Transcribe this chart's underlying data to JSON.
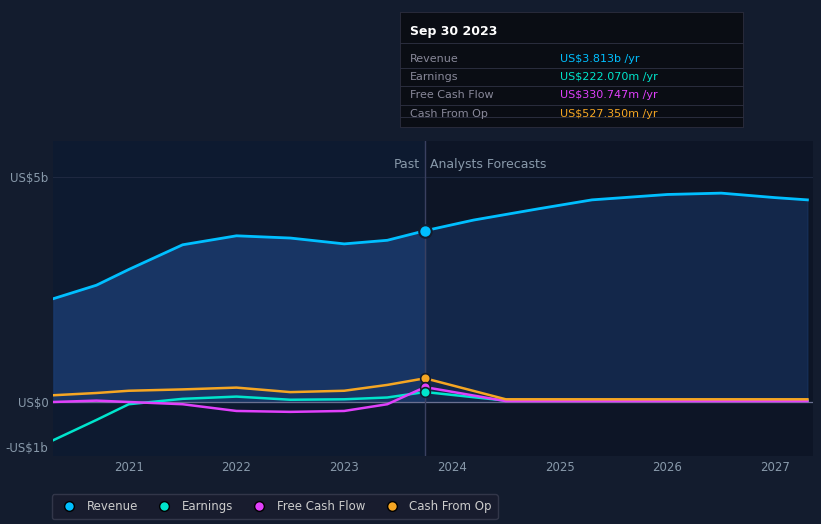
{
  "bg_color": "#131c2e",
  "plot_bg_color": "#0d1526",
  "plot_bg_past": "#0d1a30",
  "plot_bg_future": "#0d1526",
  "title_text": "Sep 30 2023",
  "tooltip_labels": [
    "Revenue",
    "Earnings",
    "Free Cash Flow",
    "Cash From Op"
  ],
  "tooltip_values": [
    "US$3.813b /yr",
    "US$222.070m /yr",
    "US$330.747m /yr",
    "US$527.350m /yr"
  ],
  "tooltip_colors": [
    "#00bfff",
    "#00e5cc",
    "#e040fb",
    "#f5a623"
  ],
  "past_label": "Past",
  "forecast_label": "Analysts Forecasts",
  "ylabel_top": "US$5b",
  "ylabel_zero": "US$0",
  "ylabel_bottom": "-US$1b",
  "divider_x": 2023.75,
  "x_ticks": [
    2021,
    2022,
    2023,
    2024,
    2025,
    2026,
    2027
  ],
  "legend_labels": [
    "Revenue",
    "Earnings",
    "Free Cash Flow",
    "Cash From Op"
  ],
  "legend_colors": [
    "#00bfff",
    "#00e5cc",
    "#e040fb",
    "#f5a623"
  ],
  "revenue_past_x": [
    2020.3,
    2020.7,
    2021.0,
    2021.5,
    2022.0,
    2022.5,
    2023.0,
    2023.4,
    2023.75
  ],
  "revenue_past_y": [
    2.3,
    2.6,
    2.95,
    3.5,
    3.7,
    3.65,
    3.52,
    3.6,
    3.813
  ],
  "revenue_future_x": [
    2023.75,
    2024.2,
    2024.8,
    2025.3,
    2026.0,
    2026.5,
    2027.0,
    2027.3
  ],
  "revenue_future_y": [
    3.813,
    4.05,
    4.3,
    4.5,
    4.62,
    4.65,
    4.55,
    4.5
  ],
  "earnings_past_x": [
    2020.3,
    2020.7,
    2021.0,
    2021.5,
    2022.0,
    2022.5,
    2023.0,
    2023.4,
    2023.75
  ],
  "earnings_past_y": [
    -0.85,
    -0.4,
    -0.05,
    0.07,
    0.12,
    0.05,
    0.06,
    0.1,
    0.222
  ],
  "earnings_future_x": [
    2023.75,
    2024.5,
    2025.0,
    2025.5,
    2026.0,
    2026.5,
    2027.0,
    2027.3
  ],
  "earnings_future_y": [
    0.222,
    0.03,
    0.03,
    0.03,
    0.03,
    0.03,
    0.03,
    0.03
  ],
  "fcf_past_x": [
    2020.3,
    2020.7,
    2021.0,
    2021.5,
    2022.0,
    2022.5,
    2023.0,
    2023.4,
    2023.75
  ],
  "fcf_past_y": [
    0.0,
    0.03,
    0.0,
    -0.05,
    -0.2,
    -0.22,
    -0.2,
    -0.05,
    0.3307
  ],
  "fcf_future_x": [
    2023.75,
    2024.5,
    2025.0,
    2025.5,
    2026.0,
    2026.5,
    2027.0,
    2027.3
  ],
  "fcf_future_y": [
    0.3307,
    0.02,
    0.02,
    0.02,
    0.02,
    0.02,
    0.02,
    0.02
  ],
  "cashop_past_x": [
    2020.3,
    2020.7,
    2021.0,
    2021.5,
    2022.0,
    2022.5,
    2023.0,
    2023.4,
    2023.75
  ],
  "cashop_past_y": [
    0.15,
    0.2,
    0.25,
    0.28,
    0.32,
    0.22,
    0.25,
    0.38,
    0.5274
  ],
  "cashop_future_x": [
    2023.75,
    2024.5,
    2025.0,
    2025.5,
    2026.0,
    2026.5,
    2027.0,
    2027.3
  ],
  "cashop_future_y": [
    0.5274,
    0.06,
    0.06,
    0.06,
    0.06,
    0.06,
    0.06,
    0.06
  ],
  "ylim": [
    -1.2,
    5.8
  ],
  "xlim": [
    2020.3,
    2027.35
  ],
  "revenue_fill_color": "#1a3a6e",
  "revenue_fill_alpha": 0.85,
  "revenue_future_fill_color": "#1a3a6e",
  "revenue_future_fill_alpha": 0.5,
  "revenue_line_color": "#00bfff",
  "earnings_line_color": "#00e5cc",
  "fcf_line_color": "#e040fb",
  "cashop_line_color": "#f5a623",
  "divider_color": "#3a4060",
  "zero_line_color": "#3a4060",
  "grid_color": "#1e2840"
}
